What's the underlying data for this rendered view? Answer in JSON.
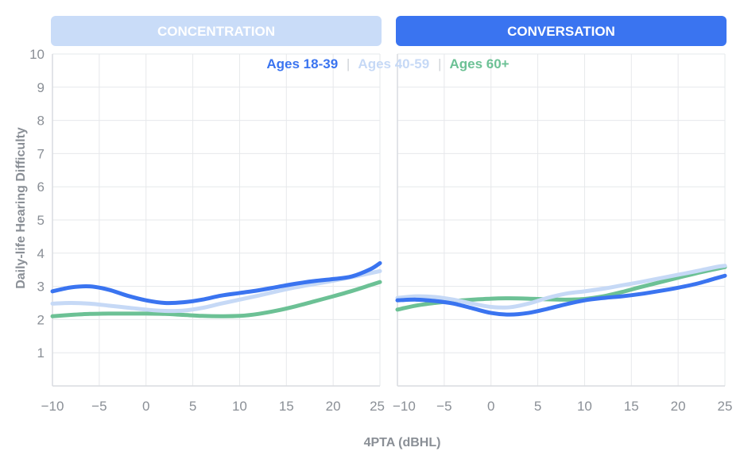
{
  "chart_data": {
    "type": "line",
    "xlabel": "4PTA (dBHL)",
    "ylabel": "Daily-life Hearing Difficulty",
    "xlim": [
      -10,
      25
    ],
    "ylim": [
      0,
      10
    ],
    "x_ticks": [
      -10,
      -5,
      0,
      5,
      10,
      15,
      20,
      25
    ],
    "y_ticks": [
      1,
      2,
      3,
      4,
      5,
      6,
      7,
      8,
      9,
      10
    ],
    "grid": true,
    "legend": {
      "placement": "top-center",
      "separator": "|",
      "entries": [
        {
          "name": "Ages 18-39",
          "color": "#3a74f0"
        },
        {
          "name": "Ages 40-59",
          "color": "#c6d9f6"
        },
        {
          "name": "Ages 60+",
          "color": "#6cc195"
        }
      ]
    },
    "panels": [
      {
        "title": "CONCENTRATION",
        "banner_color": "#c9dcf8",
        "series": [
          {
            "name": "Ages 18-39",
            "color": "#3a74f0",
            "x": [
              -10,
              -8,
              -6,
              -4,
              -2,
              0,
              2,
              4,
              6,
              8,
              10,
              12,
              14,
              16,
              18,
              20,
              22,
              24,
              25
            ],
            "y": [
              2.85,
              2.97,
              3.0,
              2.9,
              2.72,
              2.58,
              2.5,
              2.52,
              2.6,
              2.72,
              2.8,
              2.88,
              2.98,
              3.08,
              3.16,
              3.22,
              3.3,
              3.52,
              3.7
            ]
          },
          {
            "name": "Ages 40-59",
            "color": "#c6d9f6",
            "x": [
              -10,
              -8,
              -6,
              -4,
              -2,
              0,
              2,
              4,
              6,
              8,
              10,
              12,
              14,
              16,
              18,
              20,
              22,
              24,
              25
            ],
            "y": [
              2.48,
              2.5,
              2.48,
              2.42,
              2.36,
              2.3,
              2.26,
              2.27,
              2.35,
              2.48,
              2.6,
              2.72,
              2.85,
              2.97,
              3.07,
              3.17,
              3.28,
              3.4,
              3.46
            ]
          },
          {
            "name": "Ages 60+",
            "color": "#6cc195",
            "x": [
              -10,
              -8,
              -6,
              -4,
              -2,
              0,
              2,
              4,
              6,
              8,
              10,
              12,
              14,
              16,
              18,
              20,
              22,
              24,
              25
            ],
            "y": [
              2.1,
              2.14,
              2.17,
              2.18,
              2.18,
              2.18,
              2.17,
              2.14,
              2.11,
              2.1,
              2.11,
              2.17,
              2.27,
              2.4,
              2.55,
              2.7,
              2.86,
              3.04,
              3.13
            ]
          }
        ]
      },
      {
        "title": "CONVERSATION",
        "banner_color": "#3a74f0",
        "series": [
          {
            "name": "Ages 18-39",
            "color": "#3a74f0",
            "x": [
              -10,
              -8,
              -6,
              -4,
              -2,
              0,
              2,
              4,
              6,
              8,
              10,
              12,
              14,
              16,
              18,
              20,
              22,
              24,
              25
            ],
            "y": [
              2.58,
              2.6,
              2.56,
              2.48,
              2.34,
              2.2,
              2.15,
              2.2,
              2.32,
              2.46,
              2.58,
              2.65,
              2.7,
              2.77,
              2.86,
              2.96,
              3.08,
              3.24,
              3.32
            ]
          },
          {
            "name": "Ages 40-59",
            "color": "#c6d9f6",
            "x": [
              -10,
              -8,
              -6,
              -4,
              -2,
              0,
              2,
              4,
              6,
              8,
              10,
              12,
              14,
              16,
              18,
              20,
              22,
              24,
              25
            ],
            "y": [
              2.65,
              2.7,
              2.68,
              2.6,
              2.48,
              2.38,
              2.37,
              2.48,
              2.65,
              2.78,
              2.85,
              2.93,
              3.03,
              3.13,
              3.24,
              3.35,
              3.46,
              3.58,
              3.62
            ]
          },
          {
            "name": "Ages 60+",
            "color": "#6cc195",
            "x": [
              -10,
              -8,
              -6,
              -4,
              -2,
              0,
              2,
              4,
              6,
              8,
              10,
              12,
              14,
              16,
              18,
              20,
              22,
              24,
              25
            ],
            "y": [
              2.3,
              2.42,
              2.5,
              2.56,
              2.6,
              2.63,
              2.64,
              2.63,
              2.61,
              2.6,
              2.62,
              2.7,
              2.83,
              2.98,
              3.12,
              3.26,
              3.4,
              3.52,
              3.58
            ]
          }
        ]
      }
    ]
  }
}
